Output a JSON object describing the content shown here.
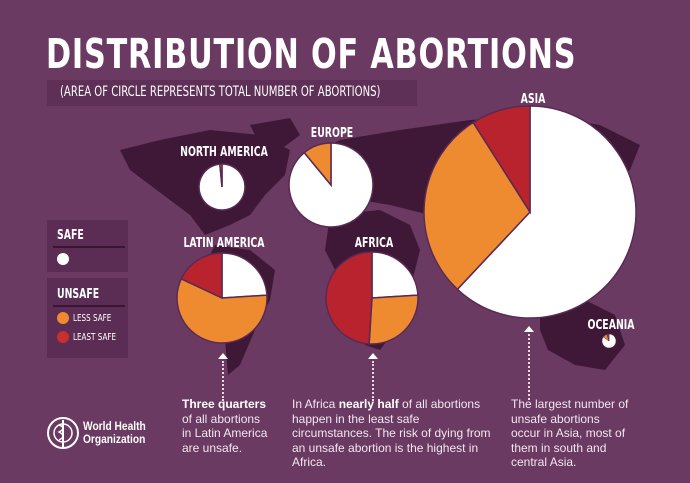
{
  "title": "DISTRIBUTION OF ABORTIONS",
  "subtitle": "(AREA OF CIRCLE REPRESENTS TOTAL NUMBER OF ABORTIONS)",
  "legend": {
    "safe_heading": "SAFE",
    "unsafe_heading": "UNSAFE",
    "less_safe": "LESS SAFE",
    "least_safe": "LEAST SAFE"
  },
  "colors": {
    "background": "#6a3a62",
    "safe": "#ffffff",
    "less_safe": "#ee8a30",
    "least_safe": "#b8232e",
    "map": "#3f1838"
  },
  "chart_data": {
    "type": "pie",
    "title": "DISTRIBUTION OF ABORTIONS",
    "subtitle": "(AREA OF CIRCLE REPRESENTS TOTAL NUMBER OF ABORTIONS)",
    "categories": [
      "SAFE",
      "LESS SAFE",
      "LEAST SAFE"
    ],
    "series": [
      {
        "name": "NORTH AMERICA",
        "values": [
          98.5,
          1.5,
          0
        ]
      },
      {
        "name": "EUROPE",
        "values": [
          89,
          11,
          0
        ]
      },
      {
        "name": "ASIA",
        "values": [
          62,
          29,
          9
        ]
      },
      {
        "name": "LATIN AMERICA",
        "values": [
          24,
          58,
          18
        ]
      },
      {
        "name": "AFRICA",
        "values": [
          24,
          27,
          49
        ]
      },
      {
        "name": "OCEANIA",
        "values": [
          85,
          10,
          5
        ]
      }
    ]
  },
  "notes": {
    "latin_america": {
      "bold": "Three quarters",
      "rest": " of all abortions in Latin America are unsafe."
    },
    "africa": {
      "pre": "In Africa ",
      "bold": "nearly half",
      "rest": " of all abortions happen in the least safe circumstances. The risk of dying from an unsafe abortion is the highest in Africa."
    },
    "asia": {
      "text": "The largest number of unsafe abortions occur in Asia, most of them in south and central Asia."
    }
  },
  "logo": {
    "line1": "World Health",
    "line2": "Organization"
  }
}
